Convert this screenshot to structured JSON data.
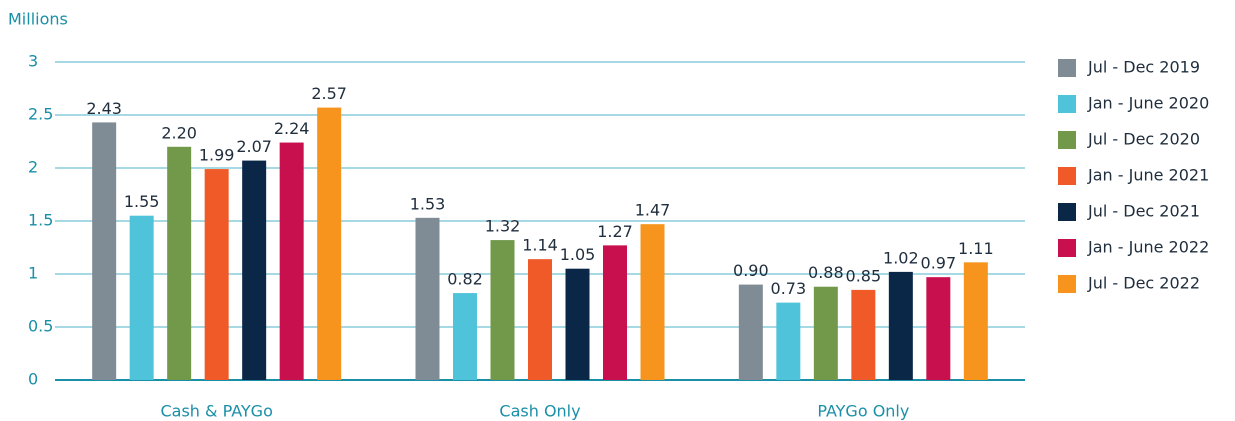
{
  "chart_data": {
    "type": "bar",
    "y_label": "Millions",
    "categories": [
      "Cash & PAYGo",
      "Cash Only",
      "PAYGo Only"
    ],
    "series": [
      {
        "name": "Jul - Dec 2019",
        "color": "#7f8c95",
        "values": [
          2.43,
          1.53,
          0.9
        ],
        "value_labels": [
          "2.43",
          "1.53",
          "0.90"
        ]
      },
      {
        "name": "Jan - June 2020",
        "color": "#4fc3d9",
        "values": [
          1.55,
          0.82,
          0.73
        ],
        "value_labels": [
          "1.55",
          "0.82",
          "0.73"
        ]
      },
      {
        "name": "Jul - Dec 2020",
        "color": "#72994a",
        "values": [
          2.2,
          1.32,
          0.88
        ],
        "value_labels": [
          "2.20",
          "1.32",
          "0.88"
        ]
      },
      {
        "name": "Jan - June 2021",
        "color": "#f05a28",
        "values": [
          1.99,
          1.14,
          0.85
        ],
        "value_labels": [
          "1.99",
          "1.14",
          "0.85"
        ]
      },
      {
        "name": "Jul - Dec 2021",
        "color": "#0a2748",
        "values": [
          2.07,
          1.05,
          1.02
        ],
        "value_labels": [
          "2.07",
          "1.05",
          "1.02"
        ]
      },
      {
        "name": "Jan - June 2022",
        "color": "#c8104e",
        "values": [
          2.24,
          1.27,
          0.97
        ],
        "value_labels": [
          "2.24",
          "1.27",
          "0.97"
        ]
      },
      {
        "name": "Jul - Dec 2022",
        "color": "#f7941d",
        "values": [
          2.57,
          1.47,
          1.11
        ],
        "value_labels": [
          "2.57",
          "1.47",
          "1.11"
        ]
      }
    ],
    "ylim": [
      0,
      3
    ],
    "yticks": [
      0,
      0.5,
      1,
      1.5,
      2,
      2.5,
      3
    ],
    "grid": true,
    "legend": "right"
  }
}
